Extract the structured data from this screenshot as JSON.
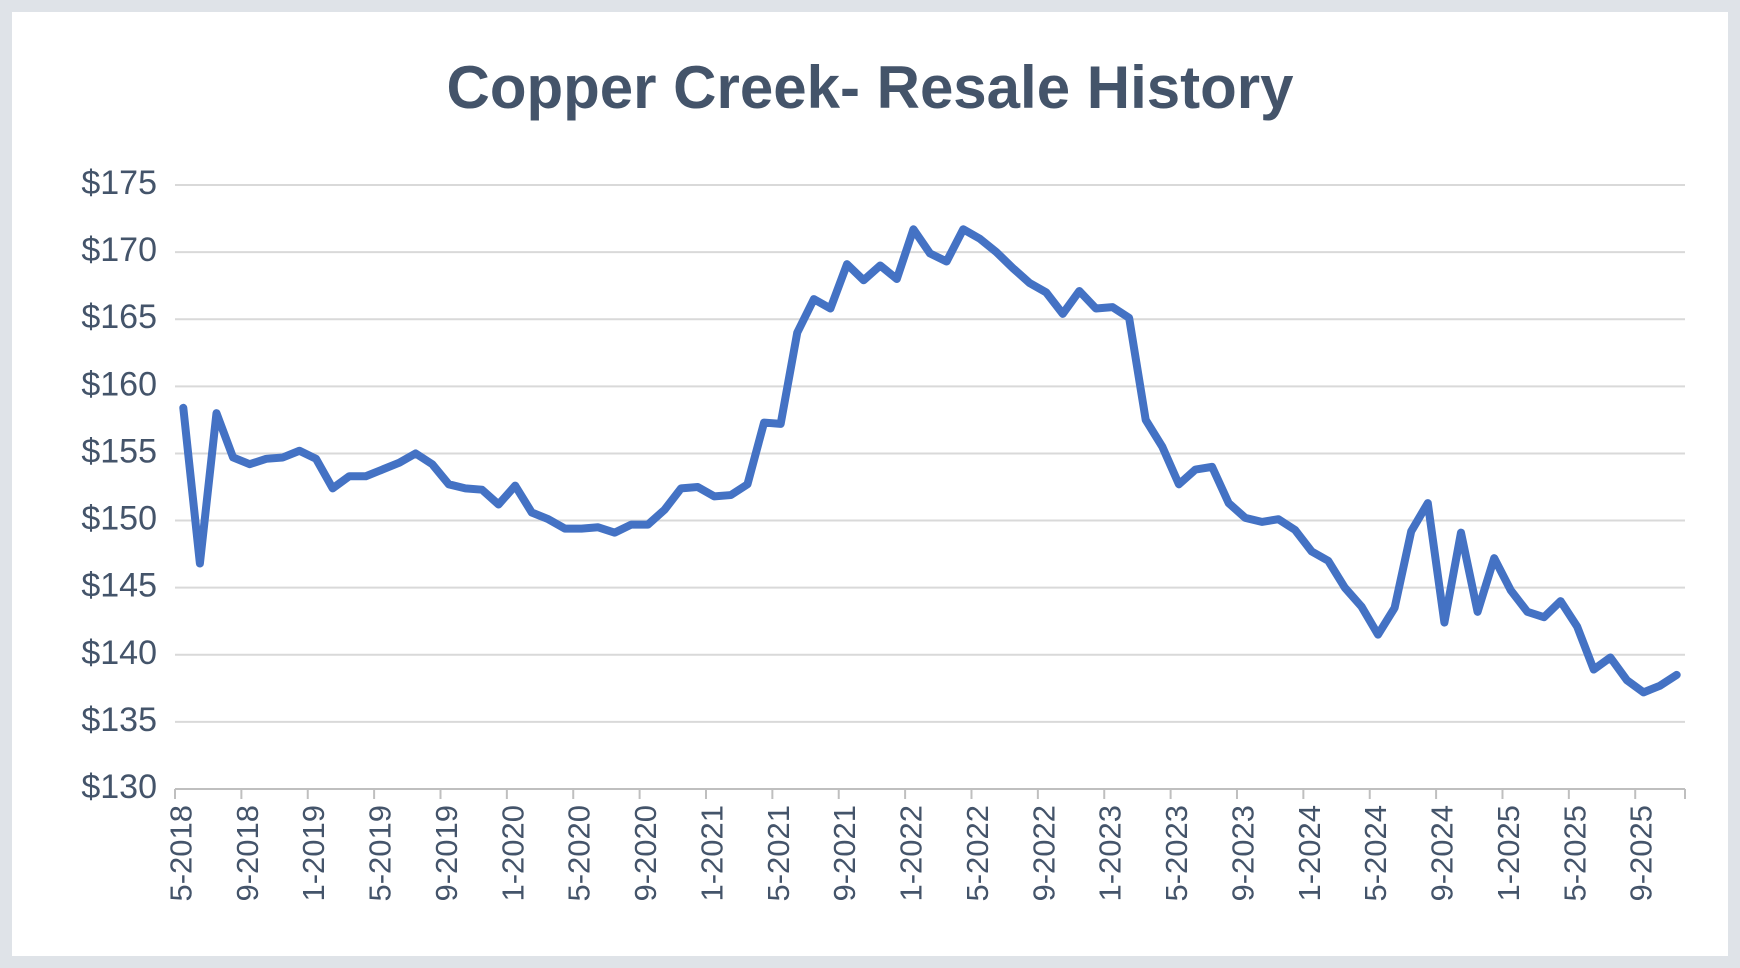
{
  "chart_data": {
    "type": "line",
    "title": "Copper Creek- Resale History",
    "categories": [
      "5-2018",
      null,
      null,
      null,
      "9-2018",
      null,
      null,
      null,
      "1-2019",
      null,
      null,
      null,
      "5-2019",
      null,
      null,
      null,
      "9-2019",
      null,
      null,
      null,
      "1-2020",
      null,
      null,
      null,
      "5-2020",
      null,
      null,
      null,
      "9-2020",
      null,
      null,
      null,
      "1-2021",
      null,
      null,
      null,
      "5-2021",
      null,
      null,
      null,
      "9-2021",
      null,
      null,
      null,
      "1-2022",
      null,
      null,
      null,
      "5-2022",
      null,
      null,
      null,
      "9-2022",
      null,
      null,
      null,
      "1-2023",
      null,
      null,
      null,
      "5-2023",
      null,
      null,
      null,
      "9-2023",
      null,
      null,
      null,
      "1-2024",
      null,
      null,
      null,
      "5-2024",
      null,
      null,
      null,
      "9-2024",
      null,
      null,
      null,
      "1-2025",
      null,
      null,
      null,
      "5-2025",
      null,
      null,
      null,
      "9-2025",
      null,
      null
    ],
    "values": [
      158.4,
      146.8,
      158.0,
      154.7,
      154.2,
      154.6,
      154.7,
      155.2,
      154.6,
      152.4,
      153.3,
      153.3,
      153.8,
      154.3,
      155.0,
      154.2,
      152.7,
      152.4,
      152.3,
      151.2,
      152.6,
      150.6,
      150.1,
      149.4,
      149.4,
      149.5,
      149.1,
      149.7,
      149.7,
      150.8,
      152.4,
      152.5,
      151.8,
      151.9,
      152.7,
      157.3,
      157.2,
      164.0,
      166.5,
      165.8,
      169.1,
      167.9,
      169.0,
      168.0,
      171.7,
      169.9,
      169.3,
      171.7,
      171.0,
      170.0,
      168.8,
      167.7,
      167.0,
      165.4,
      167.1,
      165.8,
      165.9,
      165.1,
      157.5,
      155.5,
      152.7,
      153.8,
      154.0,
      151.3,
      150.2,
      149.9,
      150.1,
      149.3,
      147.7,
      147.0,
      145.0,
      143.6,
      141.5,
      143.5,
      149.2,
      151.3,
      142.4,
      149.1,
      143.2,
      147.2,
      144.8,
      143.2,
      142.8,
      144.0,
      142.1,
      138.9,
      139.8,
      138.1,
      137.2,
      137.7,
      138.5
    ],
    "color": "#4472c4",
    "ylim": [
      130,
      175
    ],
    "yticks": [
      {
        "value": 130,
        "label": "$130"
      },
      {
        "value": 135,
        "label": "$135"
      },
      {
        "value": 140,
        "label": "$140"
      },
      {
        "value": 145,
        "label": "$145"
      },
      {
        "value": 150,
        "label": "$150"
      },
      {
        "value": 155,
        "label": "$155"
      },
      {
        "value": 160,
        "label": "$160"
      },
      {
        "value": 165,
        "label": "$165"
      },
      {
        "value": 170,
        "label": "$170"
      },
      {
        "value": 175,
        "label": "$175"
      }
    ],
    "grid": true
  }
}
